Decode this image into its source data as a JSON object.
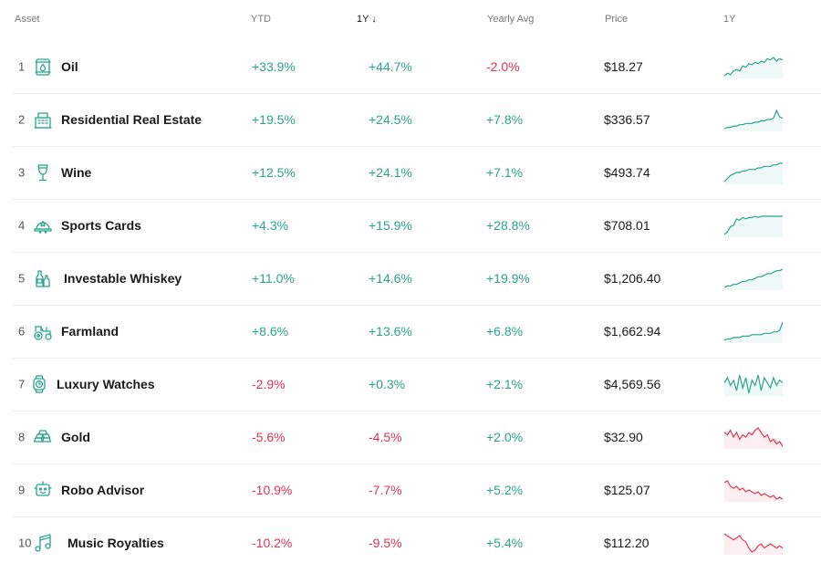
{
  "header": {
    "asset": "Asset",
    "ytd": "YTD",
    "one_y": "1Y",
    "sort_arrow": "↓",
    "yearly_avg": "Yearly Avg",
    "price": "Price",
    "chart_1y": "1Y"
  },
  "colors": {
    "positive": "#2aa58a",
    "negative": "#e0354f"
  },
  "rows": [
    {
      "rank": "1",
      "icon": "oil-barrel-icon",
      "name": "Oil",
      "ytd": "+33.9%",
      "one_y": "+44.7%",
      "yearly_avg": "-2.0%",
      "price": "$18.27",
      "trend": "up",
      "spark": [
        4,
        6,
        5,
        8,
        9,
        8,
        12,
        11,
        14,
        13,
        15,
        14,
        16,
        15,
        18,
        17,
        19,
        16,
        18,
        17
      ]
    },
    {
      "rank": "2",
      "icon": "building-icon",
      "name": "Residential Real Estate",
      "ytd": "+19.5%",
      "one_y": "+24.5%",
      "yearly_avg": "+7.8%",
      "price": "$336.57",
      "trend": "up",
      "spark": [
        4,
        5,
        5,
        6,
        6,
        7,
        7,
        8,
        8,
        8,
        9,
        9,
        10,
        10,
        11,
        11,
        12,
        18,
        13,
        12
      ]
    },
    {
      "rank": "3",
      "icon": "wine-glass-icon",
      "name": "Wine",
      "ytd": "+12.5%",
      "one_y": "+24.1%",
      "yearly_avg": "+7.1%",
      "price": "$493.74",
      "trend": "up",
      "spark": [
        4,
        6,
        8,
        9,
        10,
        10,
        11,
        11,
        12,
        12,
        12,
        13,
        13,
        14,
        14,
        14,
        15,
        15,
        16,
        16
      ]
    },
    {
      "rank": "4",
      "icon": "cap-icon",
      "name": "Sports Cards",
      "ytd": "+4.3%",
      "one_y": "+15.9%",
      "yearly_avg": "+28.8%",
      "price": "$708.01",
      "trend": "up",
      "spark": [
        3,
        5,
        9,
        10,
        15,
        14,
        16,
        15,
        16,
        16,
        17,
        16,
        17,
        17,
        17,
        17,
        17,
        17,
        17,
        17
      ]
    },
    {
      "rank": "5",
      "icon": "bottles-icon",
      "name": "Investable Whiskey",
      "ytd": "+11.0%",
      "one_y": "+14.6%",
      "yearly_avg": "+19.9%",
      "price": "$1,206.40",
      "trend": "up",
      "spark": [
        4,
        5,
        5,
        6,
        6,
        7,
        8,
        8,
        9,
        9,
        10,
        11,
        11,
        12,
        13,
        13,
        14,
        15,
        15,
        16
      ]
    },
    {
      "rank": "6",
      "icon": "tractor-icon",
      "name": "Farmland",
      "ytd": "+8.6%",
      "one_y": "+13.6%",
      "yearly_avg": "+6.8%",
      "price": "$1,662.94",
      "trend": "up",
      "spark": [
        4,
        5,
        5,
        6,
        6,
        6,
        7,
        7,
        7,
        8,
        8,
        8,
        8,
        9,
        9,
        9,
        10,
        10,
        11,
        17
      ]
    },
    {
      "rank": "7",
      "icon": "watch-icon",
      "name": "Luxury Watches",
      "ytd": "-2.9%",
      "one_y": "+0.3%",
      "yearly_avg": "+2.1%",
      "price": "$4,569.56",
      "trend": "up",
      "spark": [
        12,
        14,
        11,
        13,
        9,
        15,
        10,
        14,
        8,
        13,
        11,
        15,
        9,
        14,
        12,
        10,
        14,
        11,
        13,
        12
      ]
    },
    {
      "rank": "8",
      "icon": "gold-bars-icon",
      "name": "Gold",
      "ytd": "-5.6%",
      "one_y": "-4.5%",
      "yearly_avg": "+2.0%",
      "price": "$32.90",
      "trend": "down",
      "spark": [
        12,
        11,
        13,
        10,
        12,
        9,
        11,
        10,
        12,
        11,
        13,
        14,
        12,
        10,
        11,
        8,
        9,
        7,
        8,
        6
      ]
    },
    {
      "rank": "9",
      "icon": "robot-icon",
      "name": "Robo Advisor",
      "ytd": "-10.9%",
      "one_y": "-7.7%",
      "yearly_avg": "+5.2%",
      "price": "$125.07",
      "trend": "down",
      "spark": [
        15,
        16,
        13,
        12,
        13,
        11,
        12,
        10,
        11,
        10,
        9,
        10,
        8,
        9,
        8,
        7,
        8,
        6,
        7,
        6
      ]
    },
    {
      "rank": "10",
      "icon": "music-note-icon",
      "name": "Music Royalties",
      "ytd": "-10.2%",
      "one_y": "-9.5%",
      "yearly_avg": "+5.4%",
      "price": "$112.20",
      "trend": "down",
      "spark": [
        15,
        14,
        13,
        12,
        13,
        14,
        12,
        11,
        8,
        6,
        7,
        9,
        10,
        8,
        9,
        10,
        9,
        8,
        9,
        8
      ]
    }
  ]
}
